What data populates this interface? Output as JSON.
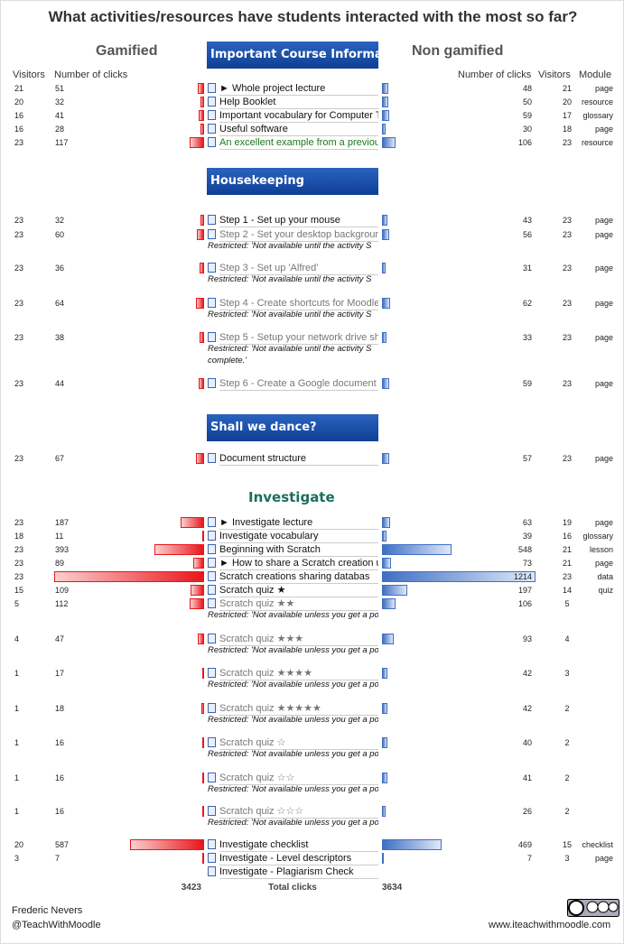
{
  "title": "What activities/resources have students interacted with the most so far?",
  "gamified_heading": "Gamified",
  "non_gamified_heading": "Non gamified",
  "columns": {
    "visitors": "Visitors",
    "clicks": "Number of clicks",
    "module": "Module"
  },
  "gamified_color": "#e8161b",
  "non_gamified_color": "#3f6fc4",
  "sections": [
    {
      "banner": "Important Course Informa",
      "rows": [
        {
          "g_visitors": 21,
          "g_clicks": 51,
          "name": "► Whole project lecture",
          "ng_clicks": 48,
          "ng_visitors": 21,
          "module": "page"
        },
        {
          "g_visitors": 20,
          "g_clicks": 32,
          "name": "Help Booklet",
          "ng_clicks": 50,
          "ng_visitors": 20,
          "module": "resource"
        },
        {
          "g_visitors": 16,
          "g_clicks": 41,
          "name": "Important vocabulary for Computer T",
          "ng_clicks": 59,
          "ng_visitors": 17,
          "module": "glossary"
        },
        {
          "g_visitors": 16,
          "g_clicks": 28,
          "name": "Useful software",
          "ng_clicks": 30,
          "ng_visitors": 18,
          "module": "page"
        },
        {
          "g_visitors": 23,
          "g_clicks": 117,
          "name": "An excellent example from a previou",
          "color": "#1a7a1a",
          "ng_clicks": 106,
          "ng_visitors": 23,
          "module": "resource"
        }
      ]
    },
    {
      "banner": "Housekeeping",
      "rows": [
        {
          "g_visitors": 23,
          "g_clicks": 32,
          "name": "Step 1 - Set up your mouse",
          "ng_clicks": 43,
          "ng_visitors": 23,
          "module": "page"
        },
        {
          "g_visitors": 23,
          "g_clicks": 60,
          "name": "Step 2 - Set your desktop backgroun",
          "color": "#777777",
          "restriction": [
            "Restricted: 'Not available until the activity S"
          ],
          "ng_clicks": 56,
          "ng_visitors": 23,
          "module": "page"
        },
        {
          "g_visitors": 23,
          "g_clicks": 36,
          "name": "Step 3 - Set up 'Alfred'",
          "color": "#777777",
          "restriction": [
            "Restricted: 'Not available until the activity S"
          ],
          "ng_clicks": 31,
          "ng_visitors": 23,
          "module": "page"
        },
        {
          "g_visitors": 23,
          "g_clicks": 64,
          "name": "Step 4 - Create shortcuts for Moodle",
          "color": "#777777",
          "restriction": [
            "Restricted: 'Not available until the activity S"
          ],
          "ng_clicks": 62,
          "ng_visitors": 23,
          "module": "page"
        },
        {
          "g_visitors": 23,
          "g_clicks": 38,
          "name": "Step 5 - Setup your network drive sho",
          "color": "#777777",
          "restriction": [
            "Restricted: 'Not available until the activity S",
            "complete.'"
          ],
          "ng_clicks": 33,
          "ng_visitors": 23,
          "module": "page"
        },
        {
          "g_visitors": 23,
          "g_clicks": 44,
          "name": "Step 6 - Create a Google document a",
          "color": "#777777",
          "ng_clicks": 59,
          "ng_visitors": 23,
          "module": "page"
        }
      ]
    },
    {
      "banner": "Shall we dance?",
      "rows": [
        {
          "g_visitors": 23,
          "g_clicks": 67,
          "name": "Document structure",
          "ng_clicks": 57,
          "ng_visitors": 23,
          "module": "page"
        }
      ]
    },
    {
      "banner": "Investigate",
      "rows": [
        {
          "g_visitors": 23,
          "g_clicks": 187,
          "name": "► Investigate lecture",
          "ng_clicks": 63,
          "ng_visitors": 19,
          "module": "page"
        },
        {
          "g_visitors": 18,
          "g_clicks": 11,
          "name": "Investigate vocabulary",
          "ng_clicks": 39,
          "ng_visitors": 16,
          "module": "glossary"
        },
        {
          "g_visitors": 23,
          "g_clicks": 393,
          "name": "Beginning with Scratch",
          "ng_clicks": 548,
          "ng_visitors": 21,
          "module": "lesson"
        },
        {
          "g_visitors": 23,
          "g_clicks": 89,
          "name": "► How to share a Scratch creation u",
          "ng_clicks": 73,
          "ng_visitors": 21,
          "module": "page"
        },
        {
          "g_visitors": 23,
          "g_clicks": 1188,
          "name": "Scratch creations sharing databas",
          "ng_clicks": 1214,
          "ng_visitors": 23,
          "module": "data"
        },
        {
          "g_visitors": 15,
          "g_clicks": 109,
          "name": "Scratch quiz ★",
          "ng_clicks": 197,
          "ng_visitors": 14,
          "module": "quiz"
        },
        {
          "g_visitors": 5,
          "g_clicks": 112,
          "name": "Scratch quiz ★★",
          "color": "#777777",
          "restriction": [
            "Restricted: 'Not available unless you get a po"
          ],
          "ng_clicks": 106,
          "ng_visitors": 5
        },
        {
          "g_visitors": 4,
          "g_clicks": 47,
          "name": "Scratch quiz ★★★",
          "color": "#777777",
          "restriction": [
            "Restricted: 'Not available unless you get a po"
          ],
          "ng_clicks": 93,
          "ng_visitors": 4
        },
        {
          "g_visitors": 1,
          "g_clicks": 17,
          "name": "Scratch quiz ★★★★",
          "color": "#777777",
          "restriction": [
            "Restricted: 'Not available unless you get a po"
          ],
          "ng_clicks": 42,
          "ng_visitors": 3
        },
        {
          "g_visitors": 1,
          "g_clicks": 18,
          "name": "Scratch quiz ★★★★★",
          "color": "#777777",
          "restriction": [
            "Restricted: 'Not available unless you get a po"
          ],
          "ng_clicks": 42,
          "ng_visitors": 2
        },
        {
          "g_visitors": 1,
          "g_clicks": 16,
          "name": "Scratch quiz ☆",
          "color": "#777777",
          "restriction": [
            "Restricted: 'Not available unless you get a po"
          ],
          "ng_clicks": 40,
          "ng_visitors": 2
        },
        {
          "g_visitors": 1,
          "g_clicks": 16,
          "name": "Scratch quiz ☆☆",
          "color": "#777777",
          "restriction": [
            "Restricted: 'Not available unless you get a po"
          ],
          "ng_clicks": 41,
          "ng_visitors": 2
        },
        {
          "g_visitors": 1,
          "g_clicks": 16,
          "name": "Scratch quiz ☆☆☆",
          "color": "#777777",
          "restriction": [
            "Restricted: 'Not available unless you get a po"
          ],
          "ng_clicks": 26,
          "ng_visitors": 2
        },
        {
          "g_visitors": 20,
          "g_clicks": 587,
          "name": "Investigate checklist",
          "ng_clicks": 469,
          "ng_visitors": 15,
          "module": "checklist"
        },
        {
          "g_visitors": 3,
          "g_clicks": 7,
          "name": "Investigate - Level descriptors",
          "ng_clicks": 7,
          "ng_visitors": 3,
          "module": "page"
        },
        {
          "name": "Investigate - Plagiarism Check"
        }
      ]
    }
  ],
  "totals": {
    "gamified": 3423,
    "label": "Total clicks",
    "non_gamified": 3634
  },
  "footer": {
    "author": "Frederic Nevers",
    "handle": "@TeachWithMoodle",
    "url": "www.iteachwithmoodle.com"
  }
}
